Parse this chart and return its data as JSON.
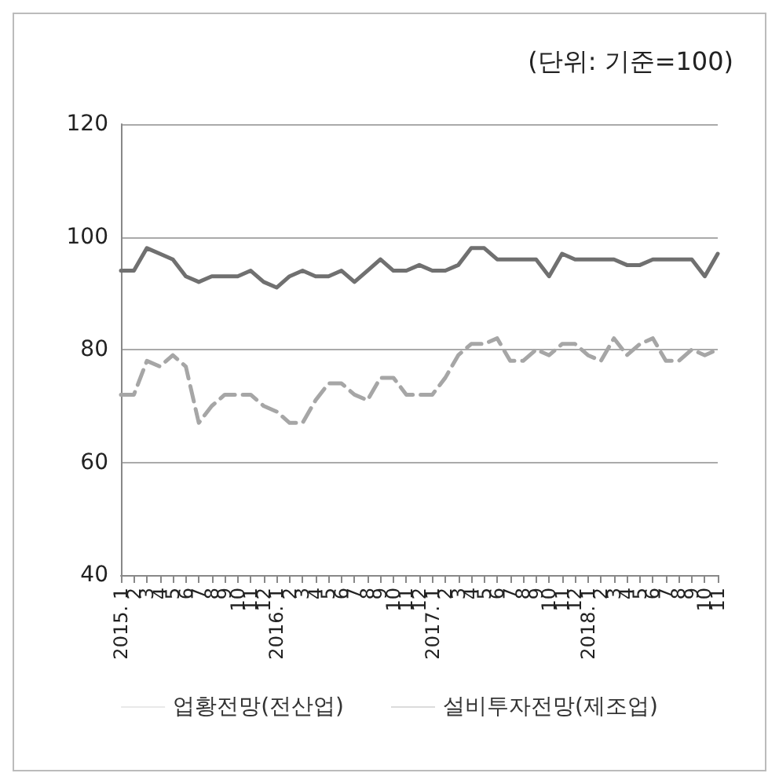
{
  "chart_data": {
    "type": "line",
    "annotations": [
      "(단위: 기준=100)"
    ],
    "categories": [
      "2015. 1",
      "2",
      "3",
      "4",
      "5",
      "6",
      "7",
      "8",
      "9",
      "10",
      "11",
      "12",
      "2016. 1",
      "2",
      "3",
      "4",
      "5",
      "6",
      "7",
      "8",
      "9",
      "10",
      "11",
      "12",
      "2017. 1",
      "2",
      "3",
      "4",
      "5",
      "6",
      "7",
      "8",
      "9",
      "10",
      "11",
      "12",
      "2018. 1",
      "2",
      "3",
      "4",
      "5",
      "6",
      "7",
      "8",
      "9",
      "10",
      "11"
    ],
    "series": [
      {
        "name": "업황전망(전산업)",
        "color": "#a6a6a6",
        "line_style": "dashed",
        "values": [
          72,
          72,
          78,
          77,
          79,
          77,
          67,
          70,
          72,
          72,
          72,
          70,
          69,
          67,
          67,
          71,
          74,
          74,
          72,
          71,
          75,
          75,
          72,
          72,
          72,
          75,
          79,
          81,
          81,
          82,
          78,
          78,
          80,
          79,
          81,
          81,
          79,
          78,
          82,
          79,
          81,
          82,
          78,
          78,
          80,
          79,
          80
        ]
      },
      {
        "name": "설비투자전망(제조업)",
        "color": "#707070",
        "line_style": "solid",
        "values": [
          94,
          94,
          98,
          97,
          96,
          93,
          92,
          93,
          93,
          93,
          94,
          92,
          91,
          93,
          94,
          93,
          93,
          94,
          92,
          94,
          96,
          94,
          94,
          95,
          94,
          94,
          95,
          98,
          98,
          96,
          96,
          96,
          96,
          93,
          97,
          96,
          96,
          96,
          96,
          95,
          95,
          96,
          96,
          96,
          96,
          93,
          97
        ]
      }
    ],
    "ylim": [
      40,
      120
    ],
    "yticks": [
      40,
      60,
      80,
      100,
      120
    ],
    "grid": "y",
    "legend": "bottom",
    "marker": "none"
  }
}
